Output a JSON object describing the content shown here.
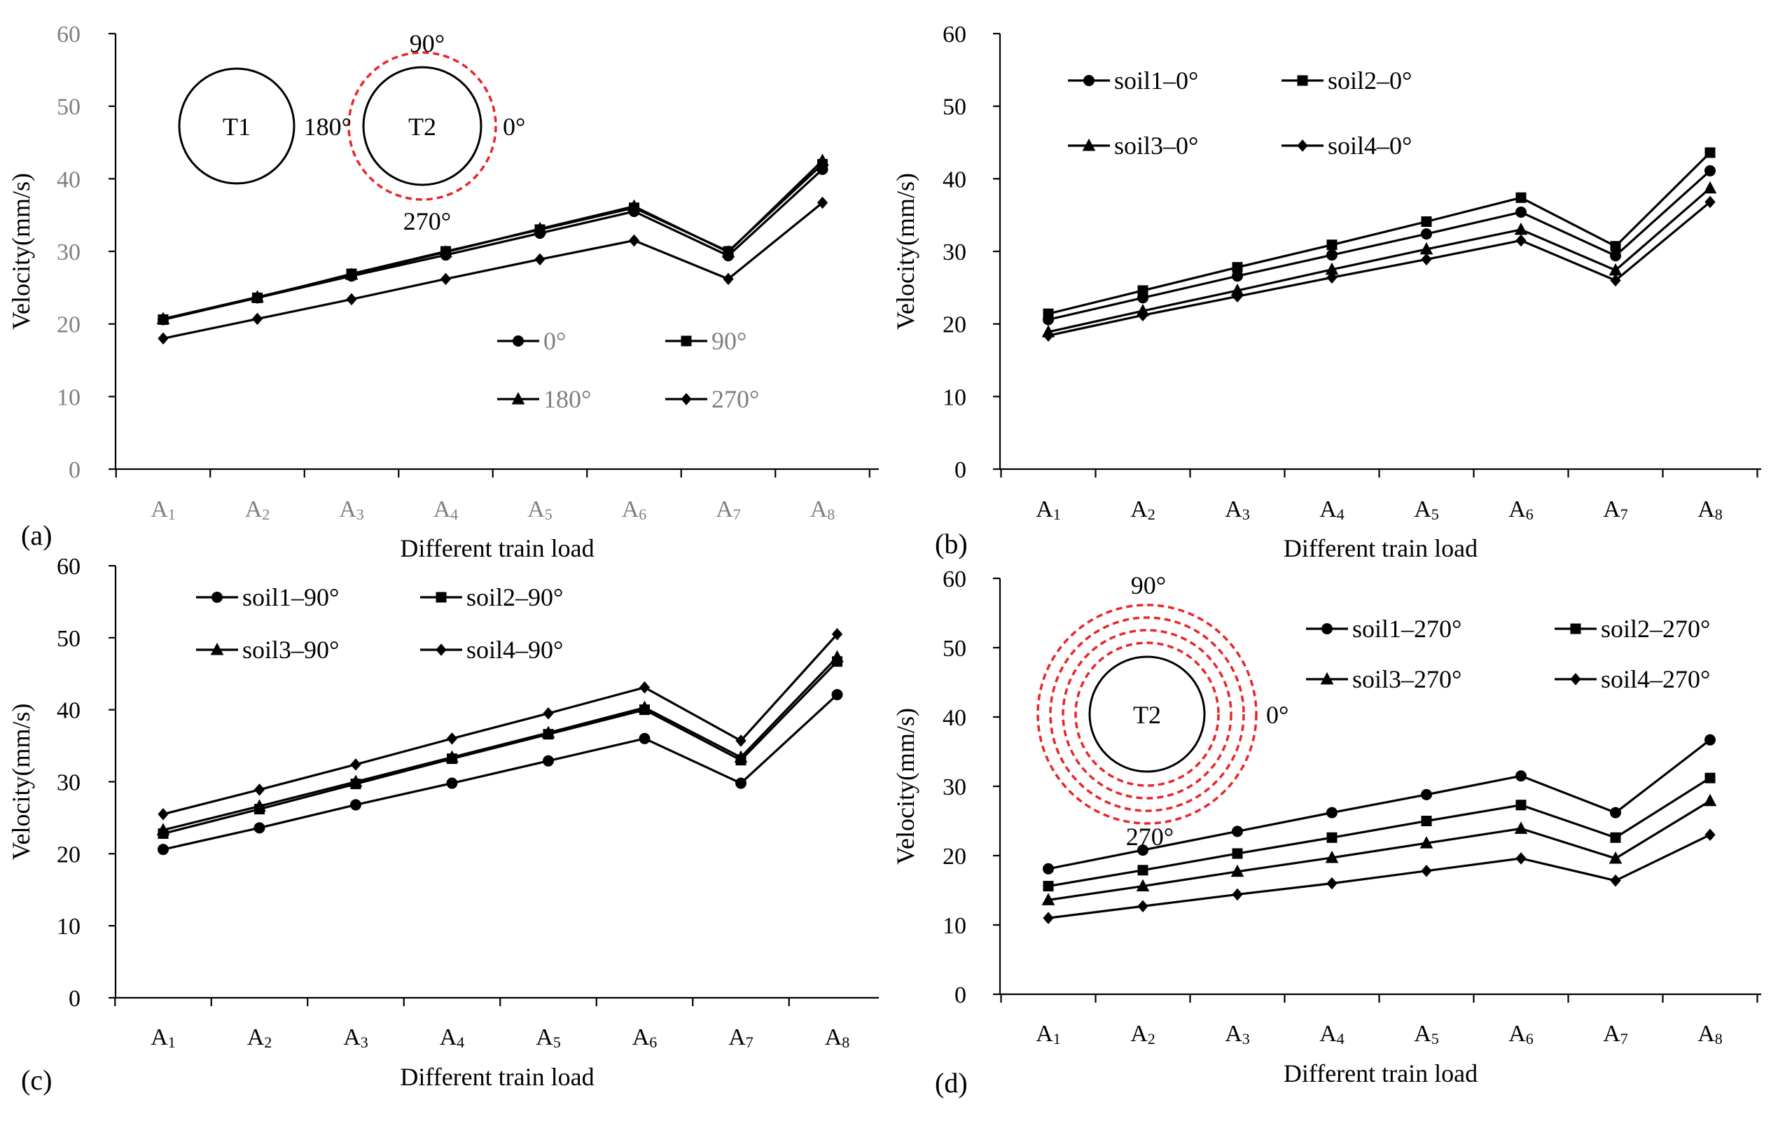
{
  "figure": {
    "panel_letters": [
      "(a)",
      "(b)",
      "(c)",
      "(d)"
    ]
  },
  "chart_data": [
    {
      "id": "a",
      "type": "line",
      "title": "",
      "xlabel": "Different train load",
      "ylabel": "Velocity(mm/s)",
      "ylim": [
        0,
        60
      ],
      "yticks": [
        "0",
        "10",
        "20",
        "30",
        "40",
        "50",
        "60"
      ],
      "categories": [
        "A1",
        "A2",
        "A3",
        "A4",
        "A5",
        "A6",
        "A7",
        "A8"
      ],
      "category_labels": [
        {
          "base": "A",
          "sub": "1"
        },
        {
          "base": "A",
          "sub": "2"
        },
        {
          "base": "A",
          "sub": "3"
        },
        {
          "base": "A",
          "sub": "4"
        },
        {
          "base": "A",
          "sub": "5"
        },
        {
          "base": "A",
          "sub": "6"
        },
        {
          "base": "A",
          "sub": "7"
        },
        {
          "base": "A",
          "sub": "8"
        }
      ],
      "tick_color": "#7f7f7f",
      "series": [
        {
          "name": "0°",
          "marker": "circle",
          "values": [
            20.6,
            23.6,
            26.6,
            29.5,
            32.5,
            35.5,
            29.4,
            41.3
          ]
        },
        {
          "name": "90°",
          "marker": "square",
          "values": [
            20.6,
            23.6,
            26.9,
            30.0,
            33.0,
            36.0,
            30.0,
            42.0
          ]
        },
        {
          "name": "180°",
          "marker": "triangle",
          "values": [
            20.7,
            23.7,
            26.8,
            29.9,
            33.1,
            36.2,
            29.9,
            42.5
          ]
        },
        {
          "name": "270°",
          "marker": "diamond",
          "values": [
            18.0,
            20.7,
            23.4,
            26.2,
            28.9,
            31.5,
            26.2,
            36.7
          ]
        }
      ],
      "legend_placement": "bottom-right",
      "diagram": {
        "tunnel_labels": [
          "T1",
          "T2"
        ],
        "angle_labels": {
          "top": "90°",
          "left": "180°",
          "right": "0°",
          "bottom": "270°"
        },
        "ring_color": "#e8262a"
      }
    },
    {
      "id": "b",
      "type": "line",
      "title": "",
      "xlabel": "Different train load",
      "ylabel": "Velocity(mm/s)",
      "ylim": [
        0,
        60
      ],
      "yticks": [
        "0",
        "10",
        "20",
        "30",
        "40",
        "50",
        "60"
      ],
      "categories": [
        "A1",
        "A2",
        "A3",
        "A4",
        "A5",
        "A6",
        "A7",
        "A8"
      ],
      "category_labels": [
        {
          "base": "A",
          "sub": "1"
        },
        {
          "base": "A",
          "sub": "2"
        },
        {
          "base": "A",
          "sub": "3"
        },
        {
          "base": "A",
          "sub": "4"
        },
        {
          "base": "A",
          "sub": "5"
        },
        {
          "base": "A",
          "sub": "6"
        },
        {
          "base": "A",
          "sub": "7"
        },
        {
          "base": "A",
          "sub": "8"
        }
      ],
      "tick_color": "#000000",
      "series": [
        {
          "name": "soil1–0°",
          "marker": "circle",
          "values": [
            20.6,
            23.6,
            26.6,
            29.5,
            32.4,
            35.4,
            29.4,
            41.1
          ]
        },
        {
          "name": "soil2–0°",
          "marker": "square",
          "values": [
            21.4,
            24.6,
            27.8,
            30.9,
            34.1,
            37.4,
            30.7,
            43.6
          ]
        },
        {
          "name": "soil3–0°",
          "marker": "triangle",
          "values": [
            18.9,
            21.8,
            24.6,
            27.5,
            30.3,
            33.0,
            27.4,
            38.7
          ]
        },
        {
          "name": "soil4–0°",
          "marker": "diamond",
          "values": [
            18.4,
            21.2,
            23.8,
            26.4,
            28.9,
            31.5,
            26.0,
            36.8
          ]
        }
      ],
      "legend_placement": "top-left"
    },
    {
      "id": "c",
      "type": "line",
      "title": "",
      "xlabel": "Different train load",
      "ylabel": "Velocity(mm/s)",
      "ylim": [
        0,
        60
      ],
      "yticks": [
        "0",
        "10",
        "20",
        "30",
        "40",
        "50",
        "60"
      ],
      "categories": [
        "A1",
        "A2",
        "A3",
        "A4",
        "A5",
        "A6",
        "A7",
        "A8"
      ],
      "category_labels": [
        {
          "base": "A",
          "sub": "1"
        },
        {
          "base": "A",
          "sub": "2"
        },
        {
          "base": "A",
          "sub": "3"
        },
        {
          "base": "A",
          "sub": "4"
        },
        {
          "base": "A",
          "sub": "5"
        },
        {
          "base": "A",
          "sub": "6"
        },
        {
          "base": "A",
          "sub": "7"
        },
        {
          "base": "A",
          "sub": "8"
        }
      ],
      "tick_color": "#000000",
      "series": [
        {
          "name": "soil1–90°",
          "marker": "circle",
          "values": [
            20.6,
            23.6,
            26.8,
            29.8,
            32.9,
            36.0,
            29.8,
            42.1
          ]
        },
        {
          "name": "soil2–90°",
          "marker": "square",
          "values": [
            22.8,
            26.2,
            29.7,
            33.2,
            36.6,
            40.0,
            33.0,
            46.7
          ]
        },
        {
          "name": "soil3–90°",
          "marker": "triangle",
          "values": [
            23.3,
            26.6,
            30.0,
            33.4,
            36.8,
            40.3,
            33.4,
            47.3
          ]
        },
        {
          "name": "soil4–90°",
          "marker": "diamond",
          "values": [
            25.5,
            28.9,
            32.4,
            36.0,
            39.5,
            43.1,
            35.7,
            50.5
          ]
        }
      ],
      "legend_placement": "top-left"
    },
    {
      "id": "d",
      "type": "line",
      "title": "",
      "xlabel": "Different train load",
      "ylabel": "Velocity(mm/s)",
      "ylim": [
        0,
        60
      ],
      "yticks": [
        "0",
        "10",
        "20",
        "30",
        "40",
        "50",
        "60"
      ],
      "categories": [
        "A1",
        "A2",
        "A3",
        "A4",
        "A5",
        "A6",
        "A7",
        "A8"
      ],
      "category_labels": [
        {
          "base": "A",
          "sub": "1"
        },
        {
          "base": "A",
          "sub": "2"
        },
        {
          "base": "A",
          "sub": "3"
        },
        {
          "base": "A",
          "sub": "4"
        },
        {
          "base": "A",
          "sub": "5"
        },
        {
          "base": "A",
          "sub": "6"
        },
        {
          "base": "A",
          "sub": "7"
        },
        {
          "base": "A",
          "sub": "8"
        }
      ],
      "tick_color": "#000000",
      "series": [
        {
          "name": "soil1–270°",
          "marker": "circle",
          "values": [
            18.1,
            20.8,
            23.5,
            26.2,
            28.8,
            31.5,
            26.2,
            36.7
          ]
        },
        {
          "name": "soil2–270°",
          "marker": "square",
          "values": [
            15.6,
            17.9,
            20.3,
            22.6,
            25.0,
            27.3,
            22.6,
            31.2
          ]
        },
        {
          "name": "soil3–270°",
          "marker": "triangle",
          "values": [
            13.6,
            15.6,
            17.7,
            19.7,
            21.8,
            23.9,
            19.6,
            27.9
          ]
        },
        {
          "name": "soil4–270°",
          "marker": "diamond",
          "values": [
            11.0,
            12.7,
            14.4,
            16.0,
            17.8,
            19.6,
            16.4,
            23.0
          ]
        }
      ],
      "legend_placement": "top-right",
      "diagram": {
        "tunnel_labels": [
          "T2"
        ],
        "angle_labels": {
          "top": "90°",
          "right": "0°",
          "bottom": "270°"
        },
        "ring_color": "#e8262a"
      }
    }
  ]
}
